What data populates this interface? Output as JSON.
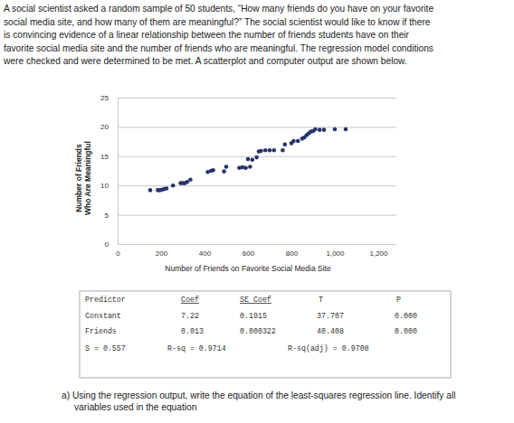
{
  "document": {
    "paragraph": [
      "A social scientist asked a random sample of 50 students, “How many friends do you have on your favorite",
      "social media site, and how many of them are meaningful?” The social scientist would like to know if there",
      "is convincing evidence of a linear relationship between the number of friends students have on their",
      "favorite social media site and the number of friends who are meaningful. The regression model conditions",
      "were checked and were determined to be met. A scatterplot and computer output are shown below."
    ],
    "question": [
      "a)  Using the regression output, write the equation of the least-squares regression line. Identify all",
      "variables used in the equation"
    ]
  },
  "chart_data": {
    "type": "scatter",
    "x_label": "Number of Friends on Favorite Social Media Site",
    "y_label": [
      "Number of Friends",
      "Who Are Meaningful"
    ],
    "x": [
      150,
      185,
      195,
      205,
      215,
      225,
      255,
      290,
      300,
      310,
      320,
      335,
      415,
      430,
      440,
      490,
      500,
      560,
      575,
      590,
      600,
      610,
      620,
      640,
      650,
      660,
      680,
      700,
      720,
      760,
      770,
      800,
      810,
      830,
      850,
      860,
      870,
      880,
      890,
      900,
      910,
      930,
      950,
      1000,
      1050
    ],
    "values": [
      9.2,
      9.2,
      9.2,
      9.3,
      9.4,
      9.5,
      10.0,
      10.4,
      10.4,
      10.4,
      10.6,
      11.0,
      12.3,
      12.5,
      12.6,
      12.4,
      13.2,
      13.0,
      13.1,
      13.0,
      14.5,
      13.2,
      14.4,
      14.8,
      15.8,
      15.9,
      16.0,
      16.0,
      16.0,
      16.0,
      17.0,
      17.2,
      17.6,
      17.6,
      18.0,
      18.2,
      18.6,
      18.9,
      19.2,
      19.3,
      19.6,
      19.5,
      19.5,
      19.6,
      19.6
    ],
    "color": "#27336b",
    "marker": "circle",
    "xlim": [
      0,
      1200
    ],
    "xticks": [
      0,
      200,
      400,
      600,
      800,
      {
        "value": 1000,
        "label": "1,000"
      },
      {
        "value": 1200,
        "label": "1,200"
      }
    ],
    "ylim": [
      0,
      25
    ],
    "yticks": [
      0,
      5,
      10,
      15,
      20,
      25
    ],
    "grid": true
  },
  "table": {
    "header": [
      "Predictor",
      "Coef",
      "SE Coef",
      "T",
      "P"
    ],
    "rows": [
      [
        "Constant",
        "7.22",
        "0.1915",
        "37.707",
        "0.000"
      ],
      [
        "Friends",
        "0.013",
        "0.000322",
        "40.408",
        "0.000"
      ]
    ],
    "summary": [
      "S = 0.557",
      "R-sq = 0.9714",
      "R-sq(adj) = 0.9708"
    ]
  }
}
